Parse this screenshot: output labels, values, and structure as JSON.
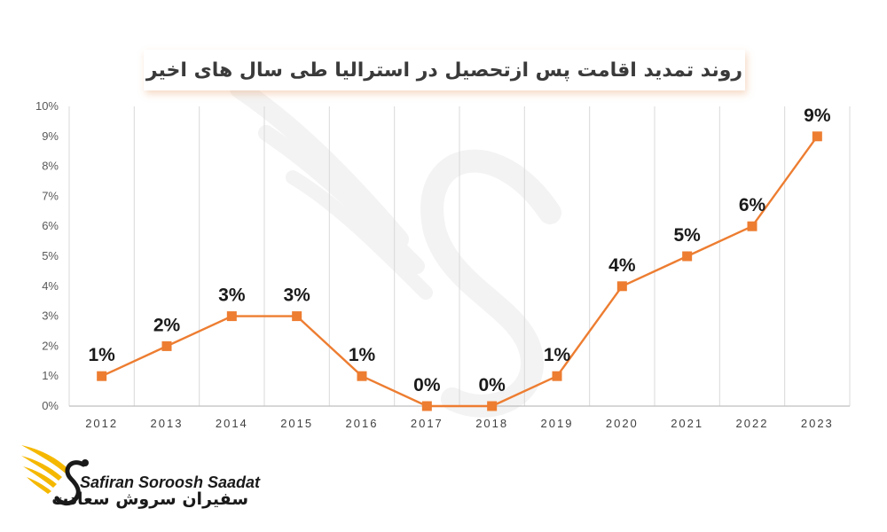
{
  "chart_data": {
    "type": "line",
    "title": "روند تمدید اقامت پس ازتحصیل در استرالیا طی سال های اخیر",
    "categories": [
      "2012",
      "2013",
      "2014",
      "2015",
      "2016",
      "2017",
      "2018",
      "2019",
      "2020",
      "2021",
      "2022",
      "2023"
    ],
    "series": [
      {
        "values": [
          1,
          2,
          3,
          3,
          1,
          0,
          0,
          1,
          4,
          5,
          6,
          9
        ]
      }
    ],
    "data_labels": [
      "1%",
      "2%",
      "3%",
      "3%",
      "1%",
      "0%",
      "0%",
      "1%",
      "4%",
      "5%",
      "6%",
      "9%"
    ],
    "y_ticks": [
      "0%",
      "1%",
      "2%",
      "3%",
      "4%",
      "5%",
      "6%",
      "7%",
      "8%",
      "9%",
      "10%"
    ],
    "ylim": [
      0,
      10
    ],
    "y_unit": "%",
    "grid": "vertical",
    "colors": {
      "line": "#ed7d31",
      "marker": "#ed7d31",
      "grid": "#d9d9d9",
      "axis": "#bfbfbf"
    }
  },
  "branding": {
    "latin": "Safiran Soroosh Saadat",
    "farsi": "سفیران سروش سعادت",
    "colors": {
      "wing": "#f5b800",
      "text": "#1a1a1a"
    }
  }
}
